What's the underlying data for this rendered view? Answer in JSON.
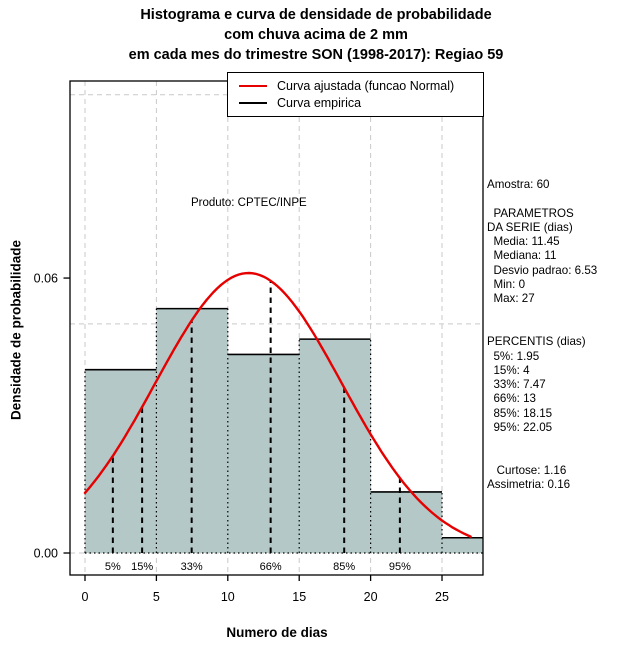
{
  "title": {
    "line1": "Histograma e curva de densidade de probabilidade",
    "line2": "com chuva acima de 2 mm",
    "line3": "em cada mes do trimestre SON (1998-2017): Regiao 59"
  },
  "chart_data": {
    "type": "histogram+density-curve",
    "xlabel": "Numero de dias",
    "ylabel": "Densidade de probabilidade",
    "annotation": "Produto: CPTEC/INPE",
    "xlim": [
      -1.05,
      27.87
    ],
    "ylim": [
      -0.0048,
      0.103
    ],
    "x_ticks": [
      {
        "value": 0,
        "label": "0"
      },
      {
        "value": 5,
        "label": "5"
      },
      {
        "value": 10,
        "label": "10"
      },
      {
        "value": 15,
        "label": "15"
      },
      {
        "value": 20,
        "label": "20"
      },
      {
        "value": 25,
        "label": "25"
      }
    ],
    "y_ticks": [
      {
        "value": 0.0,
        "label": "0.00"
      },
      {
        "value": 0.06,
        "label": "0.06"
      }
    ],
    "grid": {
      "x_values": [
        0,
        5,
        10,
        15,
        20,
        25
      ],
      "y_values": [
        0,
        0.05,
        0.1
      ],
      "color": "#c9c9c9"
    },
    "histogram": {
      "bin_edges": [
        0,
        5,
        10,
        15,
        20,
        25,
        30
      ],
      "densities": [
        0.04,
        0.05333,
        0.04333,
        0.04667,
        0.01333,
        0.00333
      ],
      "fill": "#b4c8c8"
    },
    "normal_curve": {
      "mean": 11.45,
      "sd": 6.53,
      "x_range": [
        0,
        27
      ],
      "color": "#e60000"
    },
    "percentiles": [
      {
        "label": "5%",
        "value": 1.95
      },
      {
        "label": "15%",
        "value": 4
      },
      {
        "label": "33%",
        "value": 7.47
      },
      {
        "label": "66%",
        "value": 13
      },
      {
        "label": "85%",
        "value": 18.15
      },
      {
        "label": "95%",
        "value": 22.05
      }
    ],
    "legend": [
      {
        "label": "Curva ajustada (funcao Normal)",
        "color": "#e60000"
      },
      {
        "label": "Curva empirica",
        "color": "#000000"
      }
    ]
  },
  "stats_panel": {
    "lines": [
      "Amostra: 60",
      "",
      "  PARAMETROS",
      "DA SERIE (dias)",
      "  Media: 11.45",
      "  Mediana: 11",
      "  Desvio padrao: 6.53",
      "  Min: 0",
      "  Max: 27",
      "",
      "",
      "PERCENTIS (dias)",
      "  5%: 1.95",
      "  15%: 4",
      "  33%: 7.47",
      "  66%: 13",
      "  85%: 18.15",
      "  95%: 22.05",
      "",
      "",
      "   Curtose: 1.16",
      "Assimetria: 0.16"
    ]
  }
}
